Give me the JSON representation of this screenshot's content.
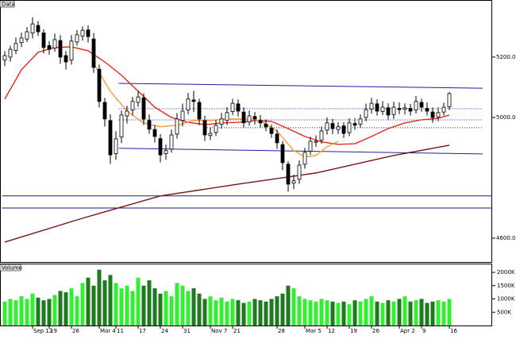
{
  "chart_data": {
    "type": "candlestick",
    "title": "Data",
    "volume_title": "Volume",
    "categories": [
      null,
      null,
      null,
      null,
      null,
      "Sep 12",
      null,
      null,
      "19",
      null,
      null,
      null,
      "26",
      null,
      null,
      null,
      null,
      "Mar 4",
      null,
      null,
      "11",
      null,
      null,
      null,
      "17",
      null,
      null,
      null,
      "24",
      null,
      null,
      null,
      "31",
      null,
      null,
      null,
      null,
      "Nov 7",
      null,
      null,
      null,
      "21",
      null,
      null,
      null,
      null,
      null,
      null,
      null,
      "28",
      null,
      null,
      null,
      null,
      "Mar 5",
      null,
      null,
      null,
      "12",
      null,
      null,
      null,
      "19",
      null,
      null,
      null,
      "26",
      null,
      null,
      null,
      null,
      "Apr 2",
      null,
      null,
      null,
      "9",
      null,
      null,
      null,
      null,
      "16"
    ],
    "open": [
      5190,
      5200,
      5222,
      5248,
      5260,
      5280,
      5305,
      5280,
      5238,
      5230,
      5255,
      5205,
      5190,
      5250,
      5270,
      5290,
      5260,
      5160,
      5050,
      4990,
      4880,
      4935,
      5005,
      5025,
      5050,
      5065,
      4990,
      4960,
      4930,
      4880,
      4895,
      4945,
      4990,
      5025,
      5058,
      5050,
      4990,
      4940,
      4950,
      4978,
      4990,
      5020,
      5045,
      5018,
      4985,
      5003,
      4990,
      4978,
      4965,
      4945,
      4910,
      4845,
      4782,
      4795,
      4845,
      4888,
      4918,
      4925,
      4958,
      4980,
      4960,
      4972,
      4950,
      4980,
      4978,
      5000,
      5028,
      5045,
      5020,
      5032,
      5010,
      5030,
      5028,
      5030,
      5025,
      5050,
      5030,
      5018,
      5002,
      5018,
      5035
    ],
    "high": [
      5220,
      5238,
      5265,
      5281,
      5299,
      5332,
      5320,
      5292,
      5253,
      5278,
      5273,
      5220,
      5273,
      5290,
      5302,
      5305,
      5280,
      5175,
      5065,
      5010,
      4954,
      5023,
      5039,
      5068,
      5088,
      5080,
      5010,
      4975,
      4945,
      4910,
      4960,
      5015,
      5046,
      5081,
      5088,
      5062,
      5005,
      4967,
      4992,
      5015,
      5034,
      5062,
      5060,
      5033,
      5023,
      5018,
      5008,
      4993,
      4977,
      4960,
      4922,
      4855,
      4810,
      4857,
      4899,
      4936,
      4941,
      4970,
      5000,
      4995,
      4984,
      4984,
      4997,
      4998,
      5010,
      5046,
      5065,
      5060,
      5054,
      5047,
      5052,
      5050,
      5047,
      5045,
      5071,
      5062,
      5050,
      5033,
      5034,
      5049,
      5084
    ],
    "low": [
      5170,
      5185,
      5210,
      5233,
      5250,
      5262,
      5270,
      5212,
      5208,
      5218,
      5178,
      5159,
      5175,
      5238,
      5255,
      5248,
      5148,
      5033,
      4970,
      4846,
      4860,
      4915,
      4980,
      5007,
      5035,
      4975,
      4946,
      4917,
      4851,
      4860,
      4883,
      4930,
      4970,
      5010,
      5018,
      4975,
      4922,
      4925,
      4938,
      4963,
      4975,
      5008,
      5003,
      4967,
      4973,
      4977,
      4967,
      4954,
      4932,
      4896,
      4825,
      4754,
      4762,
      4780,
      4830,
      4876,
      4903,
      4913,
      4943,
      4945,
      4945,
      4932,
      4938,
      4959,
      4966,
      4988,
      5013,
      5006,
      5008,
      4993,
      4995,
      5011,
      5010,
      5006,
      5013,
      5019,
      5006,
      4982,
      4987,
      5006,
      5025
    ],
    "close": [
      5205,
      5226,
      5245,
      5263,
      5284,
      5310,
      5284,
      5232,
      5226,
      5258,
      5200,
      5184,
      5253,
      5274,
      5289,
      5268,
      5166,
      5053,
      4995,
      4876,
      4929,
      5008,
      5021,
      5053,
      5068,
      4995,
      4961,
      4937,
      4876,
      4890,
      4942,
      4995,
      5021,
      5061,
      5053,
      4995,
      4942,
      4947,
      4974,
      4995,
      5016,
      5047,
      5021,
      4982,
      5005,
      4995,
      4982,
      4969,
      4947,
      4916,
      4850,
      4779,
      4790,
      4842,
      4884,
      4921,
      4921,
      4955,
      4982,
      4963,
      4969,
      4947,
      4982,
      4974,
      4995,
      5026,
      5047,
      5021,
      5034,
      5008,
      5034,
      5026,
      5032,
      5021,
      5053,
      5034,
      5021,
      5000,
      5016,
      5034,
      5079
    ],
    "volume": [
      900,
      1000,
      950,
      1100,
      1000,
      1200,
      1050,
      950,
      1000,
      1150,
      1300,
      1250,
      1400,
      1100,
      1600,
      1800,
      1500,
      2100,
      1700,
      1900,
      1600,
      1400,
      1500,
      1300,
      1800,
      1500,
      1700,
      1400,
      1200,
      1300,
      1100,
      1600,
      1500,
      1300,
      1400,
      1200,
      1000,
      1100,
      950,
      1050,
      900,
      1000,
      950,
      850,
      900,
      1000,
      950,
      900,
      1000,
      1100,
      1200,
      1500,
      1400,
      1100,
      1000,
      950,
      900,
      1000,
      950,
      900,
      850,
      900,
      800,
      950,
      900,
      1000,
      1100,
      900,
      850,
      950,
      900,
      1000,
      1100,
      900,
      950,
      1000,
      850,
      900,
      950,
      900,
      1000
    ],
    "ylim": [
      4521,
      5384
    ],
    "yticks": [
      {
        "value": 4600,
        "label": "4600.00"
      },
      {
        "value": 5000,
        "label": "5000.00"
      },
      {
        "value": 5200,
        "label": "5200.00"
      }
    ],
    "volume_lim": [
      0,
      2240
    ],
    "volume_ticks": [
      {
        "value": 500,
        "label": "500K"
      },
      {
        "value": 1000,
        "label": "1000K"
      },
      {
        "value": 1500,
        "label": "1500K"
      },
      {
        "value": 2000,
        "label": "2000K"
      }
    ],
    "up_color": "#ffffff",
    "down_color": "#000000",
    "volume_up_color": "#33ee33",
    "volume_down_color": "#1f7a1f",
    "overlays": [
      {
        "color": "#e8281e",
        "x": [
          0,
          3,
          6,
          9,
          12,
          15,
          18,
          21,
          24,
          27,
          30,
          33,
          36,
          39,
          42,
          45,
          48,
          51,
          54,
          57,
          60,
          63,
          66,
          69,
          72,
          75,
          78,
          80
        ],
        "values": [
          5061,
          5158,
          5216,
          5232,
          5234,
          5221,
          5184,
          5140,
          5087,
          5034,
          5000,
          4984,
          4976,
          4982,
          4984,
          4990,
          4987,
          4963,
          4937,
          4919,
          4911,
          4913,
          4937,
          4963,
          4982,
          4992,
          4997,
          5008
        ]
      },
      {
        "color": "#ff9a3c",
        "x": [
          16,
          19,
          22,
          25,
          28,
          31,
          34,
          37,
          40,
          43,
          46,
          49,
          52,
          54,
          56,
          58,
          60
        ],
        "values": [
          5179,
          5087,
          5021,
          4982,
          4969,
          4974,
          4990,
          4990,
          4995,
          4995,
          4990,
          4955,
          4890,
          4869,
          4874,
          4903,
          4921
        ]
      },
      {
        "color": "#7a1414",
        "x": [
          0,
          14,
          28,
          42,
          56,
          70,
          80
        ],
        "values": [
          4587,
          4666,
          4740,
          4779,
          4816,
          4874,
          4908
        ]
      }
    ],
    "trend_lines": [
      {
        "color": "#2020a0",
        "style": "solid",
        "x": [
          20.5,
          86
        ],
        "values": [
          5113,
          5097
        ]
      },
      {
        "color": "#2020a0",
        "style": "solid",
        "x": [
          20.5,
          86
        ],
        "values": [
          4898,
          4879
        ]
      },
      {
        "color": "#2020a0",
        "style": "dotted",
        "x": [
          20.5,
          86
        ],
        "values": [
          5029,
          5029
        ]
      },
      {
        "color": "#2020a0",
        "style": "dotted",
        "x": [
          20.5,
          86
        ],
        "values": [
          4992,
          4992
        ]
      },
      {
        "color": "#2020a0",
        "style": "dotted",
        "x": [
          36,
          86
        ],
        "values": [
          4966,
          4966
        ]
      },
      {
        "color": "#1a1a80",
        "style": "solid",
        "x": [
          -0.5,
          88
        ],
        "values": [
          4740,
          4740
        ]
      },
      {
        "color": "#1a1a80",
        "style": "solid",
        "x": [
          -0.5,
          88
        ],
        "values": [
          4700,
          4700
        ]
      }
    ]
  }
}
